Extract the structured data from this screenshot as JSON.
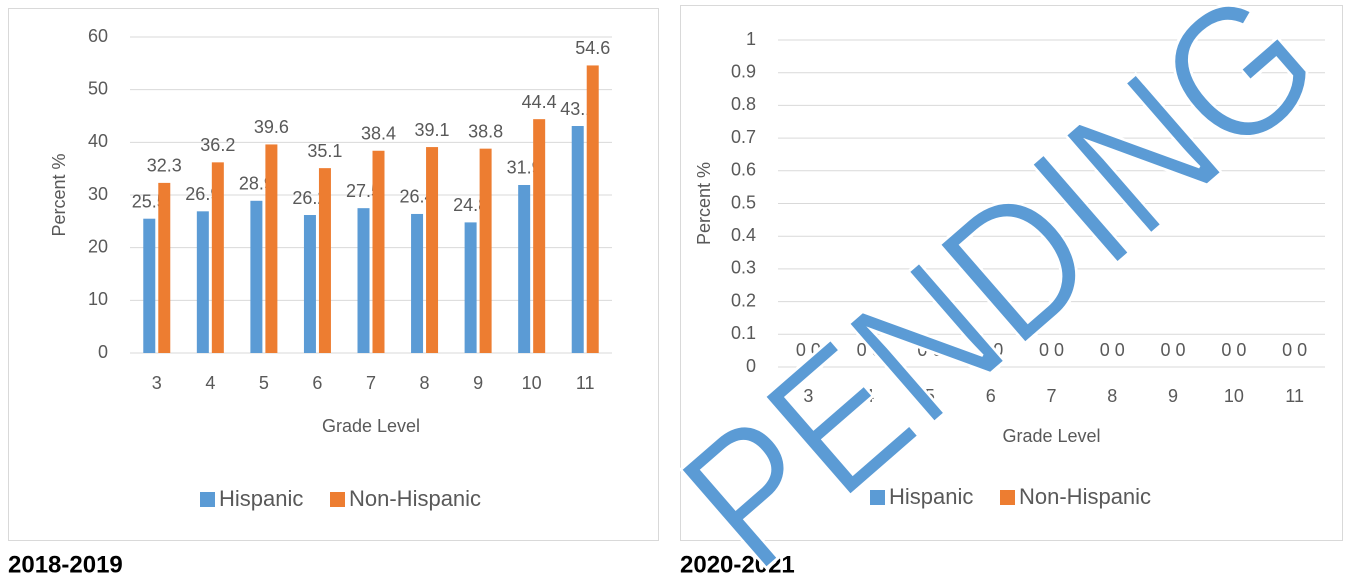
{
  "chart_data": [
    {
      "type": "bar",
      "caption": "2018-2019",
      "x_label": "Grade Level",
      "y_label": "Percent %",
      "categories": [
        "3",
        "4",
        "5",
        "6",
        "7",
        "8",
        "9",
        "10",
        "11"
      ],
      "series": [
        {
          "name": "Hispanic",
          "color": "#5b9bd5",
          "values": [
            25.5,
            26.9,
            28.9,
            26.2,
            27.5,
            26.4,
            24.8,
            31.9,
            43.1
          ]
        },
        {
          "name": "Non-Hispanic",
          "color": "#ed7d31",
          "values": [
            32.3,
            36.2,
            39.6,
            35.1,
            38.4,
            39.1,
            38.8,
            44.4,
            54.6
          ]
        }
      ],
      "ylim": [
        0,
        60
      ],
      "yticks": [
        0,
        10,
        20,
        30,
        40,
        50,
        60
      ],
      "grid": true,
      "legend": "bottom"
    },
    {
      "type": "bar",
      "caption": "2020-2021",
      "x_label": "Grade Level",
      "y_label": "Percent %",
      "watermark": "PENDING",
      "categories": [
        "3",
        "4",
        "5",
        "6",
        "7",
        "8",
        "9",
        "10",
        "11"
      ],
      "series": [
        {
          "name": "Hispanic",
          "color": "#5b9bd5",
          "values": [
            0,
            0,
            0,
            0,
            0,
            0,
            0,
            0,
            0
          ]
        },
        {
          "name": "Non-Hispanic",
          "color": "#ed7d31",
          "values": [
            0,
            0,
            0,
            0,
            0,
            0,
            0,
            0,
            0
          ]
        }
      ],
      "ylim": [
        0,
        1
      ],
      "yticks": [
        0,
        0.1,
        0.2,
        0.3,
        0.4,
        0.5,
        0.6,
        0.7,
        0.8,
        0.9,
        1
      ],
      "grid": true,
      "legend": "bottom"
    }
  ]
}
